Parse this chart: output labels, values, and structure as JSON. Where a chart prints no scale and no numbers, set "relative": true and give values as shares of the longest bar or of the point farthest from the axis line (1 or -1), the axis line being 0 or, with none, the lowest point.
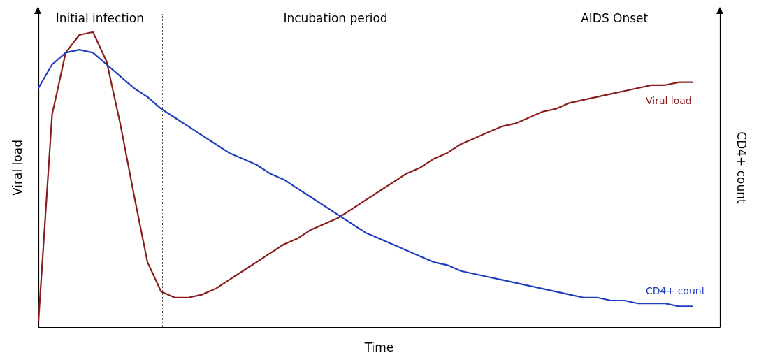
{
  "chart_data": {
    "type": "line",
    "relative": true,
    "xlabel": "Time",
    "ylabel": "Viral load",
    "y2label": "CD4+ count",
    "legend": false,
    "grid": false,
    "marker": "none",
    "line_style": "solid",
    "annotations": [
      "Initial infection",
      "Incubation period",
      "AIDS Onset"
    ],
    "categories": [
      null,
      null,
      null,
      null,
      null,
      null,
      null,
      null,
      null,
      null,
      null,
      null,
      null,
      null,
      null,
      null,
      null,
      null,
      null,
      null,
      null,
      null,
      null,
      null,
      null,
      null,
      null,
      null,
      null,
      null,
      null,
      null,
      null,
      null,
      null,
      null,
      null,
      null,
      null,
      null,
      null,
      null,
      null,
      null,
      null,
      null,
      null,
      null,
      null,
      null,
      null
    ],
    "series": [
      {
        "name": "Viral load",
        "color": "#8b1c1c",
        "values": [
          0.02,
          0.72,
          0.93,
          0.99,
          1.0,
          0.9,
          0.69,
          0.45,
          0.22,
          0.12,
          0.1,
          0.1,
          0.11,
          0.13,
          0.16,
          0.19,
          0.22,
          0.25,
          0.28,
          0.3,
          0.33,
          0.35,
          0.37,
          0.4,
          0.43,
          0.46,
          0.49,
          0.52,
          0.54,
          0.57,
          0.59,
          0.62,
          0.64,
          0.66,
          0.68,
          0.69,
          0.71,
          0.73,
          0.74,
          0.76,
          0.77,
          0.78,
          0.79,
          0.8,
          0.81,
          0.82,
          0.82,
          0.83,
          0.83,
          null,
          null
        ]
      },
      {
        "name": "CD4+ count",
        "color": "#1f3fbf",
        "values": [
          0.81,
          0.89,
          0.93,
          0.94,
          0.93,
          0.89,
          0.85,
          0.81,
          0.78,
          0.74,
          0.71,
          0.68,
          0.65,
          0.62,
          0.59,
          0.57,
          0.55,
          0.52,
          0.5,
          0.47,
          0.44,
          0.41,
          0.38,
          0.35,
          0.32,
          0.3,
          0.28,
          0.26,
          0.24,
          0.22,
          0.21,
          0.19,
          0.18,
          0.17,
          0.16,
          0.15,
          0.14,
          0.13,
          0.12,
          0.11,
          0.1,
          0.1,
          0.09,
          0.09,
          0.08,
          0.08,
          0.08,
          0.07,
          0.07,
          null,
          null
        ]
      }
    ]
  }
}
